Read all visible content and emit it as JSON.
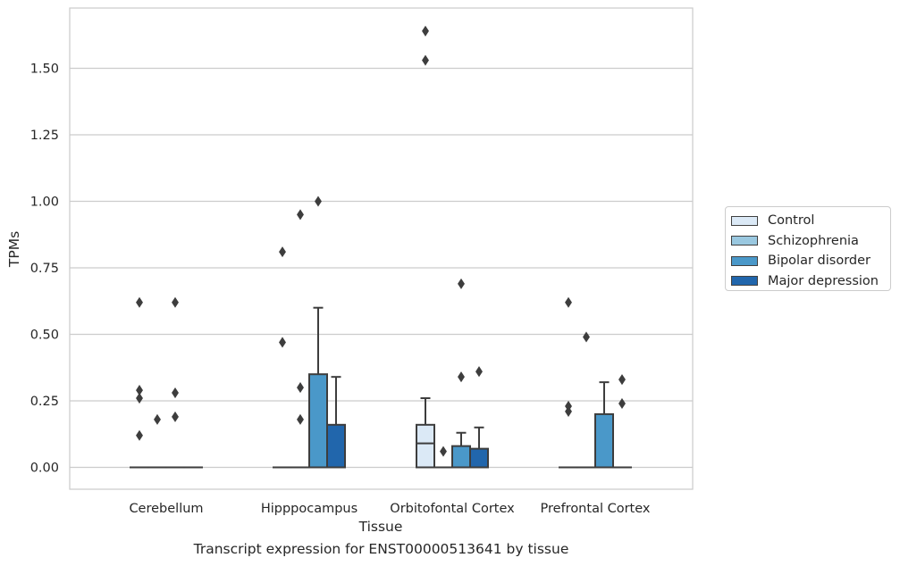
{
  "chart_data": {
    "type": "box",
    "xlabel": "Tissue",
    "ylabel": "TPMs",
    "ylim": [
      -0.08,
      1.7
    ],
    "yticks": [
      "0.00",
      "0.25",
      "0.50",
      "0.75",
      "1.00",
      "1.25",
      "1.50"
    ],
    "ytick_values": [
      0,
      0.25,
      0.5,
      0.75,
      1.0,
      1.25,
      1.5
    ],
    "grid": "horizontal",
    "legend_placement": "right",
    "categories": [
      "Cerebellum",
      "Hipppocampus",
      "Orbitofontal Cortex",
      "Prefrontal Cortex"
    ],
    "series": [
      {
        "name": "Control",
        "color": "#dbe9f6",
        "boxes": [
          {
            "q1": 0,
            "median": 0,
            "q3": 0,
            "whisker_low": 0,
            "whisker_high": 0,
            "outliers": [
              0.62,
              0.29,
              0.26,
              0.12
            ]
          },
          {
            "q1": 0,
            "median": 0,
            "q3": 0,
            "whisker_low": 0,
            "whisker_high": 0,
            "outliers": [
              0.81,
              0.47
            ]
          },
          {
            "q1": 0,
            "median": 0.09,
            "q3": 0.16,
            "whisker_low": 0,
            "whisker_high": 0.26,
            "outliers": [
              1.64,
              1.53
            ]
          },
          {
            "q1": 0,
            "median": 0,
            "q3": 0,
            "whisker_low": 0,
            "whisker_high": 0,
            "outliers": [
              0.62,
              0.23,
              0.21
            ]
          }
        ]
      },
      {
        "name": "Schizophrenia",
        "color": "#9ac8e0",
        "boxes": [
          {
            "q1": 0,
            "median": 0,
            "q3": 0,
            "whisker_low": 0,
            "whisker_high": 0,
            "outliers": [
              0.18
            ]
          },
          {
            "q1": 0,
            "median": 0,
            "q3": 0,
            "whisker_low": 0,
            "whisker_high": 0,
            "outliers": [
              0.95,
              0.3,
              0.18
            ]
          },
          {
            "q1": 0,
            "median": 0,
            "q3": 0,
            "whisker_low": 0,
            "whisker_high": 0,
            "outliers": [
              0.06
            ]
          },
          {
            "q1": 0,
            "median": 0,
            "q3": 0,
            "whisker_low": 0,
            "whisker_high": 0,
            "outliers": [
              0.49
            ]
          }
        ]
      },
      {
        "name": "Bipolar disorder",
        "color": "#4a98c9",
        "boxes": [
          {
            "q1": 0,
            "median": 0,
            "q3": 0,
            "whisker_low": 0,
            "whisker_high": 0,
            "outliers": [
              0.62,
              0.28,
              0.19
            ]
          },
          {
            "q1": 0,
            "median": 0,
            "q3": 0.35,
            "whisker_low": 0,
            "whisker_high": 0.6,
            "outliers": [
              1.0
            ]
          },
          {
            "q1": 0,
            "median": 0,
            "q3": 0.08,
            "whisker_low": 0,
            "whisker_high": 0.13,
            "outliers": [
              0.69,
              0.34
            ]
          },
          {
            "q1": 0,
            "median": 0,
            "q3": 0.2,
            "whisker_low": 0,
            "whisker_high": 0.32,
            "outliers": []
          }
        ]
      },
      {
        "name": "Major depression",
        "color": "#2166ac",
        "boxes": [
          {
            "q1": 0,
            "median": 0,
            "q3": 0,
            "whisker_low": 0,
            "whisker_high": 0,
            "outliers": []
          },
          {
            "q1": 0,
            "median": 0,
            "q3": 0.16,
            "whisker_low": 0,
            "whisker_high": 0.34,
            "outliers": []
          },
          {
            "q1": 0,
            "median": 0,
            "q3": 0.07,
            "whisker_low": 0,
            "whisker_high": 0.15,
            "outliers": [
              0.36
            ]
          },
          {
            "q1": 0,
            "median": 0,
            "q3": 0,
            "whisker_low": 0,
            "whisker_high": 0,
            "outliers": [
              0.33,
              0.24
            ]
          }
        ]
      }
    ]
  },
  "caption": "Transcript expression for ENST00000513641 by tissue"
}
